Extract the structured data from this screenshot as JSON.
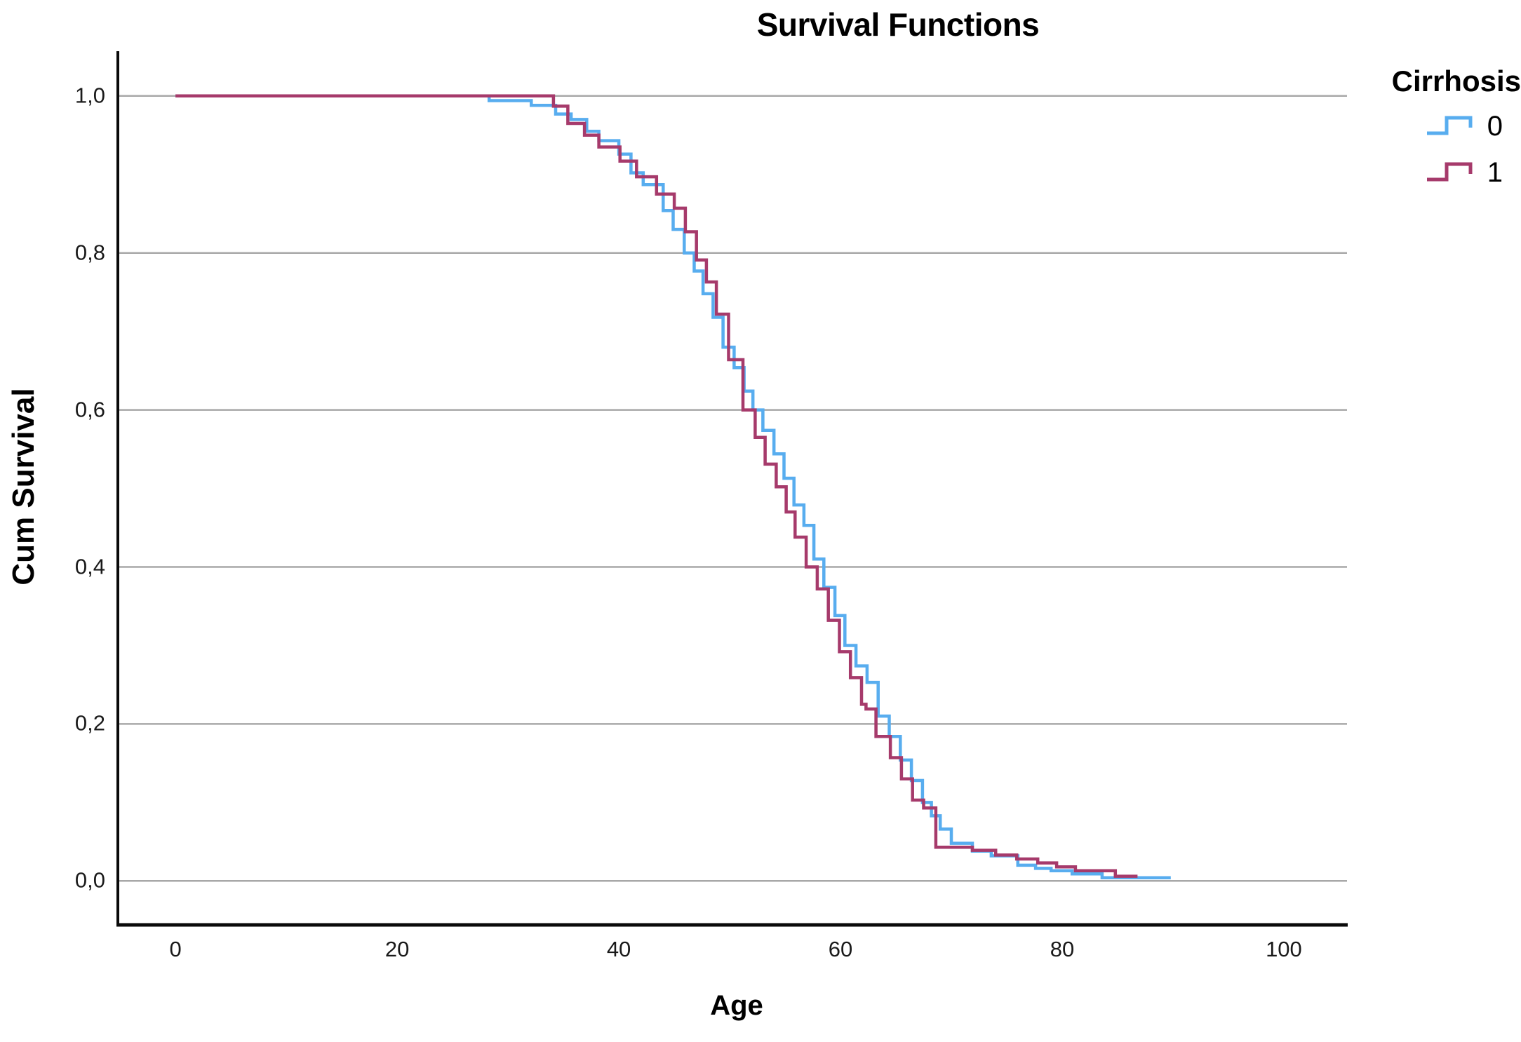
{
  "title": "Survival Functions",
  "legend": {
    "title": "Cirrhosis",
    "entries": [
      {
        "label": "0",
        "color": "#58ADEF"
      },
      {
        "label": "1",
        "color": "#A63A6B"
      }
    ]
  },
  "colors": {
    "background": "#FFFFFF",
    "grid": "#A8A8A8",
    "axis": "#0A0A0A",
    "tick_text": "#1A1A1A",
    "title_text": "#000000",
    "series0": "#58ADEF",
    "series1": "#A63A6B"
  },
  "chart_data": {
    "type": "line",
    "subtype": "kaplan-meier-step",
    "title": "Survival Functions",
    "xlabel": "Age",
    "ylabel": "Cum Survival",
    "legend_title": "Cirrhosis",
    "legend_position": "outside-top-right",
    "grid": "horizontal-only",
    "decimal_separator": ",",
    "xlim": [
      -5.2,
      105.7
    ],
    "ylim": [
      -0.056,
      1.057
    ],
    "xticks": [
      0,
      20,
      40,
      60,
      80,
      100
    ],
    "xtick_labels": [
      "0",
      "20",
      "40",
      "60",
      "80",
      "100"
    ],
    "yticks": [
      0.0,
      0.2,
      0.4,
      0.6,
      0.8,
      1.0
    ],
    "ytick_labels": [
      "0,0",
      "0,2",
      "0,4",
      "0,6",
      "0,8",
      "1,0"
    ],
    "series": [
      {
        "name": "0",
        "color": "#58ADEF",
        "points": [
          [
            0,
            1.0
          ],
          [
            28.3,
            0.994
          ],
          [
            32.1,
            0.988
          ],
          [
            34.3,
            0.977
          ],
          [
            35.7,
            0.97
          ],
          [
            37.1,
            0.955
          ],
          [
            38.2,
            0.943
          ],
          [
            40.0,
            0.926
          ],
          [
            41.1,
            0.902
          ],
          [
            42.2,
            0.887
          ],
          [
            44.0,
            0.854
          ],
          [
            44.9,
            0.83
          ],
          [
            45.9,
            0.8
          ],
          [
            46.8,
            0.777
          ],
          [
            47.6,
            0.748
          ],
          [
            48.5,
            0.718
          ],
          [
            49.4,
            0.68
          ],
          [
            50.4,
            0.654
          ],
          [
            51.3,
            0.624
          ],
          [
            52.1,
            0.6
          ],
          [
            53.0,
            0.574
          ],
          [
            54.0,
            0.544
          ],
          [
            54.9,
            0.513
          ],
          [
            55.8,
            0.479
          ],
          [
            56.7,
            0.453
          ],
          [
            57.6,
            0.41
          ],
          [
            58.5,
            0.374
          ],
          [
            59.5,
            0.338
          ],
          [
            60.4,
            0.3
          ],
          [
            61.4,
            0.274
          ],
          [
            62.4,
            0.253
          ],
          [
            63.4,
            0.21
          ],
          [
            64.4,
            0.184
          ],
          [
            65.4,
            0.154
          ],
          [
            66.4,
            0.128
          ],
          [
            67.4,
            0.1
          ],
          [
            68.2,
            0.083
          ],
          [
            69.0,
            0.066
          ],
          [
            70.0,
            0.048
          ],
          [
            71.9,
            0.038
          ],
          [
            73.6,
            0.032
          ],
          [
            76.0,
            0.02
          ],
          [
            77.6,
            0.016
          ],
          [
            79.0,
            0.013
          ],
          [
            80.9,
            0.009
          ],
          [
            83.6,
            0.004
          ],
          [
            89.8,
            0.004
          ]
        ]
      },
      {
        "name": "1",
        "color": "#A63A6B",
        "points": [
          [
            0,
            1.0
          ],
          [
            34.1,
            0.987
          ],
          [
            35.4,
            0.965
          ],
          [
            36.9,
            0.95
          ],
          [
            38.2,
            0.935
          ],
          [
            40.1,
            0.917
          ],
          [
            41.6,
            0.897
          ],
          [
            43.4,
            0.875
          ],
          [
            45.0,
            0.857
          ],
          [
            46.0,
            0.827
          ],
          [
            47.0,
            0.791
          ],
          [
            47.9,
            0.763
          ],
          [
            48.8,
            0.722
          ],
          [
            49.9,
            0.664
          ],
          [
            51.2,
            0.6
          ],
          [
            52.3,
            0.565
          ],
          [
            53.2,
            0.531
          ],
          [
            54.2,
            0.502
          ],
          [
            55.1,
            0.47
          ],
          [
            55.9,
            0.438
          ],
          [
            56.9,
            0.4
          ],
          [
            57.9,
            0.372
          ],
          [
            58.9,
            0.332
          ],
          [
            59.9,
            0.292
          ],
          [
            60.9,
            0.259
          ],
          [
            61.9,
            0.225
          ],
          [
            62.3,
            0.219
          ],
          [
            63.2,
            0.184
          ],
          [
            64.5,
            0.157
          ],
          [
            65.5,
            0.13
          ],
          [
            66.5,
            0.103
          ],
          [
            67.5,
            0.093
          ],
          [
            68.6,
            0.043
          ],
          [
            71.9,
            0.039
          ],
          [
            74.0,
            0.033
          ],
          [
            75.9,
            0.028
          ],
          [
            77.8,
            0.023
          ],
          [
            79.5,
            0.018
          ],
          [
            81.2,
            0.013
          ],
          [
            84.8,
            0.006
          ],
          [
            86.8,
            0.006
          ]
        ]
      }
    ]
  }
}
